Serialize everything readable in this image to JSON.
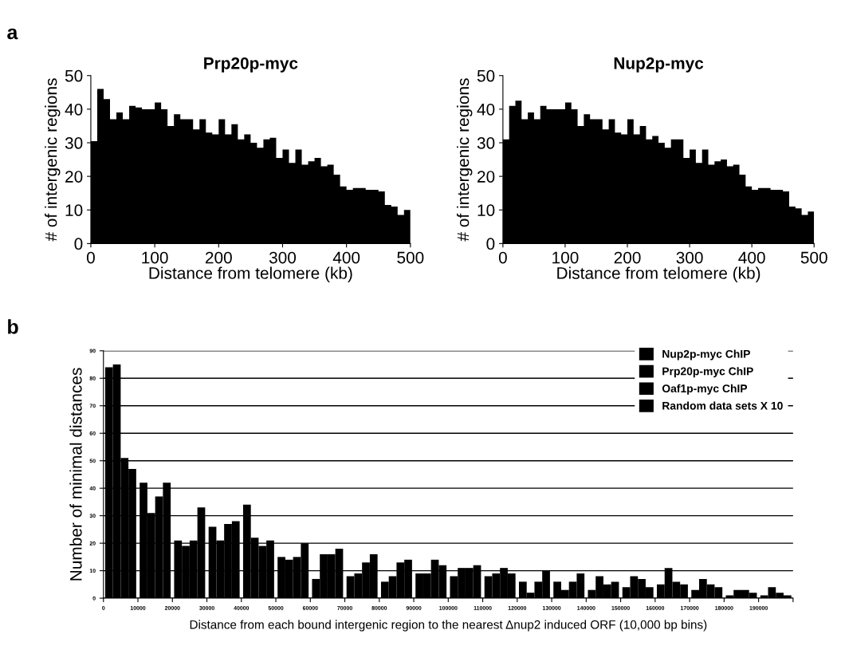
{
  "chart_data": [
    {
      "type": "histogram",
      "title": "Prp20p-myc",
      "xlabel": "Distance from telomere (kb)",
      "ylabel": "# of intergenic regions",
      "annotations": [
        "a"
      ],
      "bins": [
        0,
        10,
        20,
        30,
        40,
        50,
        60,
        70,
        80,
        90,
        100,
        110,
        120,
        130,
        140,
        150,
        160,
        170,
        180,
        190,
        200,
        210,
        220,
        230,
        240,
        250,
        260,
        270,
        280,
        290,
        300,
        310,
        320,
        330,
        340,
        350,
        360,
        370,
        380,
        390,
        400,
        410,
        420,
        430,
        440,
        450,
        460,
        470,
        480,
        490,
        500
      ],
      "values": [
        30.5,
        46,
        43,
        37,
        39,
        37,
        41,
        40.5,
        40,
        40,
        42,
        40,
        35,
        38.5,
        37,
        37,
        34,
        37,
        33,
        32.5,
        37,
        32.5,
        35.5,
        31,
        32.5,
        30,
        28.5,
        31,
        31.5,
        25.5,
        28,
        24,
        28,
        23.5,
        24.5,
        25.5,
        23,
        23.5,
        20.5,
        17,
        16,
        16.5,
        16.5,
        16,
        16,
        15.5,
        11.5,
        11,
        8.5,
        10
      ],
      "color": "#000000",
      "xlim": [
        0,
        500
      ],
      "ylim": [
        0,
        50
      ],
      "xticks": [
        0,
        100,
        200,
        300,
        400,
        500
      ],
      "yticks": [
        0,
        10,
        20,
        30,
        40,
        50
      ]
    },
    {
      "type": "histogram",
      "title": "Nup2p-myc",
      "xlabel": "Distance from telomere (kb)",
      "ylabel": "# of intergenic regions",
      "bins": [
        0,
        10,
        20,
        30,
        40,
        50,
        60,
        70,
        80,
        90,
        100,
        110,
        120,
        130,
        140,
        150,
        160,
        170,
        180,
        190,
        200,
        210,
        220,
        230,
        240,
        250,
        260,
        270,
        280,
        290,
        300,
        310,
        320,
        330,
        340,
        350,
        360,
        370,
        380,
        390,
        400,
        410,
        420,
        430,
        440,
        450,
        460,
        470,
        480,
        490,
        500
      ],
      "values": [
        31,
        41,
        42.5,
        37,
        39,
        37,
        41,
        40,
        40,
        40,
        42,
        40,
        35,
        38.5,
        37,
        37,
        34,
        37,
        33,
        32.5,
        37,
        32.5,
        35,
        31,
        32,
        30,
        28.5,
        31,
        31,
        25.5,
        28,
        24,
        28,
        23.5,
        24.5,
        25,
        23,
        23.5,
        20.5,
        17,
        16,
        16.5,
        16.5,
        16,
        16,
        15.5,
        11,
        10.5,
        8.5,
        9.5
      ],
      "color": "#000000",
      "xlim": [
        0,
        500
      ],
      "ylim": [
        0,
        50
      ],
      "xticks": [
        0,
        100,
        200,
        300,
        400,
        500
      ],
      "yticks": [
        0,
        10,
        20,
        30,
        40,
        50
      ]
    },
    {
      "type": "bar",
      "xlabel": "Distance from each bound intergenic region to the nearest Δnup2 induced ORF (10,000 bp bins)",
      "ylabel": "Number of minimal distances",
      "annotations": [
        "b"
      ],
      "x": [
        5000,
        15000,
        25000,
        35000,
        45000,
        55000,
        65000,
        75000,
        85000,
        95000,
        105000,
        115000,
        125000,
        135000,
        145000,
        155000,
        165000,
        175000,
        185000,
        195000
      ],
      "series": [
        {
          "name": "Nup2p-myc ChIP",
          "color": "#000000",
          "values": [
            84,
            42,
            21,
            26,
            34,
            15,
            7,
            8,
            6,
            9,
            8,
            8,
            6,
            6,
            3,
            4,
            5,
            3,
            1,
            1
          ]
        },
        {
          "name": "Prp20p-myc ChIP",
          "color": "#000000",
          "values": [
            85,
            31,
            19,
            21,
            22,
            14,
            16,
            9,
            8,
            9,
            11,
            9,
            2,
            3,
            8,
            8,
            11,
            7,
            3,
            4
          ]
        },
        {
          "name": "Oaf1p-myc ChIP",
          "color": "#000000",
          "values": [
            51,
            37,
            21,
            27,
            19,
            15,
            16,
            13,
            13,
            14,
            11,
            11,
            6,
            6,
            5,
            7,
            6,
            5,
            3,
            2
          ]
        },
        {
          "name": "Random data sets X 10",
          "color": "#000000",
          "values": [
            47,
            42,
            33,
            28,
            21,
            20,
            18,
            16,
            14,
            12,
            12,
            9,
            10,
            9,
            6,
            4,
            5,
            4,
            2,
            1
          ]
        }
      ],
      "xlim": [
        0,
        200000
      ],
      "ylim": [
        0,
        90
      ],
      "xticks": [
        0,
        10000,
        20000,
        30000,
        40000,
        50000,
        60000,
        70000,
        80000,
        90000,
        100000,
        110000,
        120000,
        130000,
        140000,
        150000,
        160000,
        170000,
        180000,
        190000,
        {
          "value": 200000,
          "label": null
        }
      ],
      "yticks": [
        0,
        10,
        20,
        30,
        40,
        50,
        60,
        70,
        80,
        90
      ],
      "grid": "y",
      "legend": "top right"
    }
  ]
}
